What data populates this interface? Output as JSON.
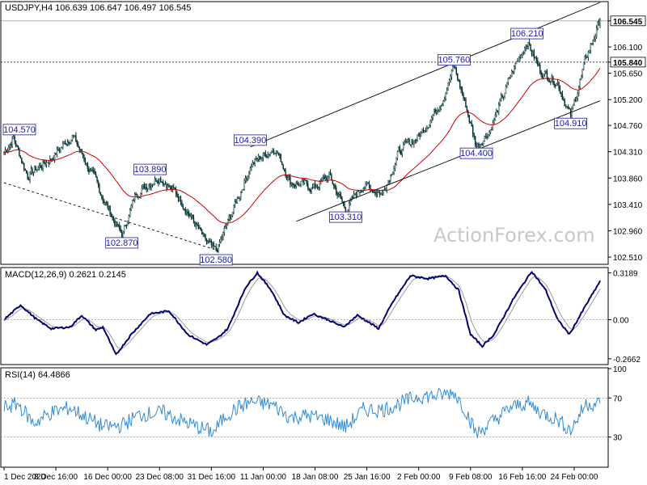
{
  "watermark": "ActionForex.com",
  "colors": {
    "candle": "#003030",
    "ema": "#cc0000",
    "macd": "#00006e",
    "signal": "#9a9a9a",
    "rsi": "#2f8bd6",
    "channel": "#000000",
    "annotation": "#1a1aa8",
    "frame": "#000000",
    "level": "#000000"
  },
  "chart_data": [
    {
      "type": "candlestick",
      "title": "USDJPY,H4  106.639 106.647 106.497 106.545",
      "ylim": [
        102.4,
        106.86
      ],
      "y_ticks": [
        "106.545",
        "106.100",
        "105.840",
        "105.650",
        "105.200",
        "104.760",
        "104.310",
        "103.860",
        "103.410",
        "102.960",
        "102.510"
      ],
      "y_tick_values": [
        106.545,
        106.1,
        105.84,
        105.65,
        105.2,
        104.76,
        104.31,
        103.86,
        103.41,
        102.96,
        102.51
      ],
      "highlight_levels": [
        "106.545",
        "105.840"
      ],
      "x_ticks": [
        "1 Dec 2020",
        "8 Dec 16:00",
        "16 Dec 00:00",
        "23 Dec 08:00",
        "31 Dec 16:00",
        "11 Jan 00:00",
        "18 Jan 08:00",
        "25 Jan 16:00",
        "2 Feb 00:00",
        "9 Feb 08:00",
        "16 Feb 16:00",
        "24 Feb 00:00"
      ],
      "x_tick_bars": [
        0,
        44,
        88,
        132,
        176,
        220,
        264,
        308,
        352,
        396,
        440,
        484
      ],
      "num_bars": 507,
      "keypoints": [
        [
          0,
          104.3
        ],
        [
          8,
          104.55
        ],
        [
          20,
          103.9
        ],
        [
          40,
          104.2
        ],
        [
          58,
          104.6
        ],
        [
          75,
          103.9
        ],
        [
          92,
          103.2
        ],
        [
          100,
          102.87
        ],
        [
          112,
          103.6
        ],
        [
          132,
          103.9
        ],
        [
          150,
          103.5
        ],
        [
          170,
          102.8
        ],
        [
          180,
          102.58
        ],
        [
          194,
          103.3
        ],
        [
          210,
          104.1
        ],
        [
          230,
          104.39
        ],
        [
          243,
          103.8
        ],
        [
          263,
          103.7
        ],
        [
          276,
          103.9
        ],
        [
          290,
          103.31
        ],
        [
          305,
          103.75
        ],
        [
          321,
          103.6
        ],
        [
          335,
          104.3
        ],
        [
          353,
          104.6
        ],
        [
          372,
          105.2
        ],
        [
          382,
          105.76
        ],
        [
          392,
          105.1
        ],
        [
          401,
          104.4
        ],
        [
          413,
          104.7
        ],
        [
          432,
          105.7
        ],
        [
          444,
          106.21
        ],
        [
          455,
          105.7
        ],
        [
          470,
          105.5
        ],
        [
          481,
          104.91
        ],
        [
          494,
          105.9
        ],
        [
          506,
          106.55
        ]
      ],
      "annotations": [
        {
          "label": "104.570",
          "bar": 8,
          "value": 104.57
        },
        {
          "label": "102.870",
          "bar": 100,
          "value": 102.87
        },
        {
          "label": "103.890",
          "bar": 124,
          "value": 103.89
        },
        {
          "label": "102.580",
          "bar": 180,
          "value": 102.58
        },
        {
          "label": "104.390",
          "bar": 209,
          "value": 104.39
        },
        {
          "label": "103.310",
          "bar": 290,
          "value": 103.31
        },
        {
          "label": "105.760",
          "bar": 382,
          "value": 105.76
        },
        {
          "label": "104.400",
          "bar": 401,
          "value": 104.4
        },
        {
          "label": "106.210",
          "bar": 444,
          "value": 106.21
        },
        {
          "label": "104.910",
          "bar": 481,
          "value": 104.91
        }
      ],
      "trendlines": [
        {
          "name": "channel-upper",
          "from": [
            209,
            104.39
          ],
          "to": [
            506,
            106.86
          ]
        },
        {
          "name": "channel-lower",
          "from": [
            248,
            103.12
          ],
          "to": [
            506,
            105.18
          ]
        },
        {
          "name": "support-line",
          "from": [
            0,
            103.78
          ],
          "to": [
            182,
            102.62
          ]
        }
      ],
      "ema_period": 55
    },
    {
      "type": "line",
      "title": "MACD(12,26,9) 0.2621 0.2145",
      "series": [
        {
          "name": "MACD(12,26,9)"
        },
        {
          "name": "Signal"
        }
      ],
      "ylim": [
        -0.3,
        0.35
      ],
      "y_ticks": [
        "0.3189",
        "0.00",
        "-0.2662"
      ],
      "y_tick_values": [
        0.3189,
        0.0,
        -0.2662
      ],
      "macd_points": [
        [
          0,
          0.0
        ],
        [
          14,
          0.1
        ],
        [
          28,
          0.0
        ],
        [
          40,
          -0.06
        ],
        [
          56,
          -0.05
        ],
        [
          66,
          0.03
        ],
        [
          78,
          -0.07
        ],
        [
          84,
          -0.05
        ],
        [
          95,
          -0.24
        ],
        [
          108,
          -0.1
        ],
        [
          124,
          0.04
        ],
        [
          140,
          0.06
        ],
        [
          156,
          -0.1
        ],
        [
          172,
          -0.17
        ],
        [
          182,
          -0.12
        ],
        [
          190,
          -0.06
        ],
        [
          205,
          0.22
        ],
        [
          215,
          0.32
        ],
        [
          227,
          0.2
        ],
        [
          238,
          0.03
        ],
        [
          250,
          -0.02
        ],
        [
          262,
          0.04
        ],
        [
          275,
          0.0
        ],
        [
          288,
          -0.05
        ],
        [
          300,
          0.03
        ],
        [
          318,
          -0.06
        ],
        [
          330,
          0.12
        ],
        [
          345,
          0.3
        ],
        [
          360,
          0.28
        ],
        [
          375,
          0.3
        ],
        [
          386,
          0.2
        ],
        [
          396,
          -0.1
        ],
        [
          406,
          -0.18
        ],
        [
          416,
          -0.1
        ],
        [
          433,
          0.15
        ],
        [
          448,
          0.33
        ],
        [
          460,
          0.2
        ],
        [
          470,
          0.0
        ],
        [
          480,
          -0.1
        ],
        [
          494,
          0.1
        ],
        [
          506,
          0.2621
        ]
      ]
    },
    {
      "type": "line",
      "title": "RSI(14) 64.4866",
      "series": [
        {
          "name": "RSI(14)"
        }
      ],
      "ylim": [
        0,
        100
      ],
      "y_ticks": [
        "100",
        "70",
        "30",
        "0"
      ],
      "y_tick_values": [
        100,
        70,
        30,
        0
      ],
      "rsi_points": [
        [
          0,
          60
        ],
        [
          12,
          64
        ],
        [
          25,
          44
        ],
        [
          40,
          55
        ],
        [
          56,
          60
        ],
        [
          70,
          50
        ],
        [
          85,
          40
        ],
        [
          100,
          42
        ],
        [
          115,
          53
        ],
        [
          135,
          55
        ],
        [
          150,
          47
        ],
        [
          165,
          40
        ],
        [
          178,
          35
        ],
        [
          188,
          52
        ],
        [
          200,
          61
        ],
        [
          210,
          66
        ],
        [
          228,
          63
        ],
        [
          243,
          50
        ],
        [
          258,
          52
        ],
        [
          275,
          48
        ],
        [
          290,
          40
        ],
        [
          305,
          58
        ],
        [
          322,
          58
        ],
        [
          338,
          65
        ],
        [
          352,
          72
        ],
        [
          368,
          72
        ],
        [
          382,
          76
        ],
        [
          392,
          57
        ],
        [
          401,
          33
        ],
        [
          413,
          44
        ],
        [
          430,
          60
        ],
        [
          444,
          65
        ],
        [
          456,
          55
        ],
        [
          470,
          48
        ],
        [
          481,
          37
        ],
        [
          494,
          64
        ],
        [
          506,
          64.49
        ]
      ]
    }
  ]
}
